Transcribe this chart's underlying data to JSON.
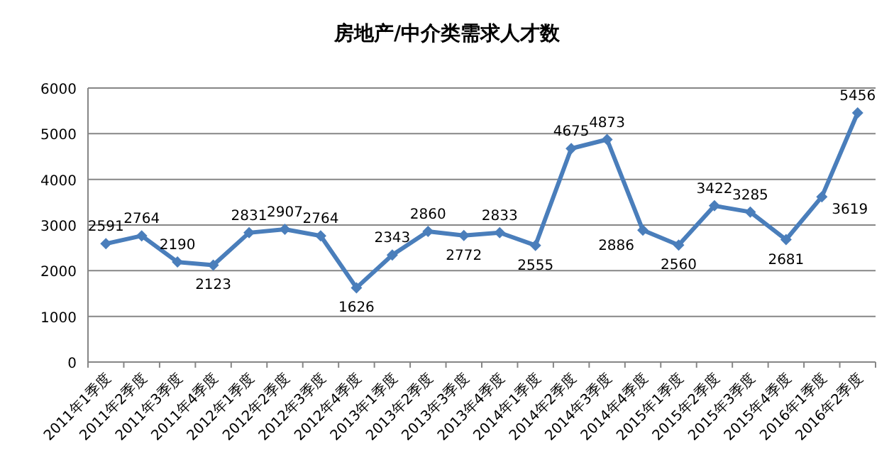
{
  "chart_data": {
    "type": "line",
    "title": "房地产/中介类需求人才数",
    "categories": [
      "2011年1季度",
      "2011年2季度",
      "2011年3季度",
      "2011年4季度",
      "2012年1季度",
      "2012年2季度",
      "2012年3季度",
      "2012年4季度",
      "2013年1季度",
      "2013年2季度",
      "2013年3季度",
      "2013年4季度",
      "2014年1季度",
      "2014年2季度",
      "2014年3季度",
      "2014年4季度",
      "2015年1季度",
      "2015年2季度",
      "2015年3季度",
      "2015年4季度",
      "2016年1季度",
      "2016年2季度"
    ],
    "series": [
      {
        "color": "#4a7ebb",
        "values": [
          2591,
          2764,
          2190,
          2123,
          2831,
          2907,
          2764,
          1626,
          2343,
          2860,
          2772,
          2833,
          2555,
          4675,
          4873,
          2886,
          2560,
          3422,
          3285,
          2681,
          3619,
          5456
        ]
      }
    ],
    "ylim": [
      0,
      6000
    ],
    "yticks": [
      0,
      1000,
      2000,
      3000,
      4000,
      5000,
      6000
    ],
    "grid": "y",
    "marker": "diamond",
    "data_labels": true
  }
}
